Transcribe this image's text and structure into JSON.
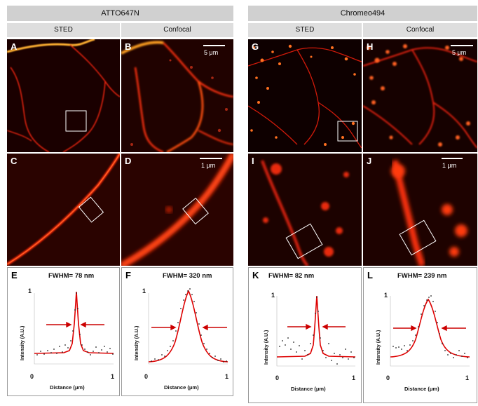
{
  "groups": [
    {
      "title": "ATTO647N",
      "sub_left": "STED",
      "sub_right": "Confocal"
    },
    {
      "title": "Chromeo494",
      "sub_left": "STED",
      "sub_right": "Confocal"
    }
  ],
  "panel_letters": [
    "A",
    "B",
    "C",
    "D",
    "E",
    "F",
    "G",
    "H",
    "I",
    "J",
    "K",
    "L"
  ],
  "scale_bars": {
    "top": "5 μm",
    "middle": "1 μm"
  },
  "plots": [
    {
      "fwhm": "FWHM= 78 nm",
      "ylabel": "Intensity (A.U.)",
      "xlabel": "Distance (μm)",
      "x0": "0",
      "x1": "1",
      "y1": "1"
    },
    {
      "fwhm": "FWHM= 320 nm",
      "ylabel": "Intensity (A.U.)",
      "xlabel": "Distance (μm)",
      "x0": "0",
      "x1": "1",
      "y1": "1"
    },
    {
      "fwhm": "FWHM= 82 nm",
      "ylabel": "Intensity (A.U.)",
      "xlabel": "Distance (μm)",
      "x0": "0",
      "x1": "1",
      "y1": "1"
    },
    {
      "fwhm": "FWHM= 239 nm",
      "ylabel": "Intensity (A.U.)",
      "xlabel": "Distance (μm)",
      "x0": "0",
      "x1": "1",
      "y1": "1"
    }
  ],
  "colors": {
    "fit_line": "#dd0000",
    "points": "#222222",
    "arrow": "#cc0000",
    "header": "#d0d0d0"
  }
}
